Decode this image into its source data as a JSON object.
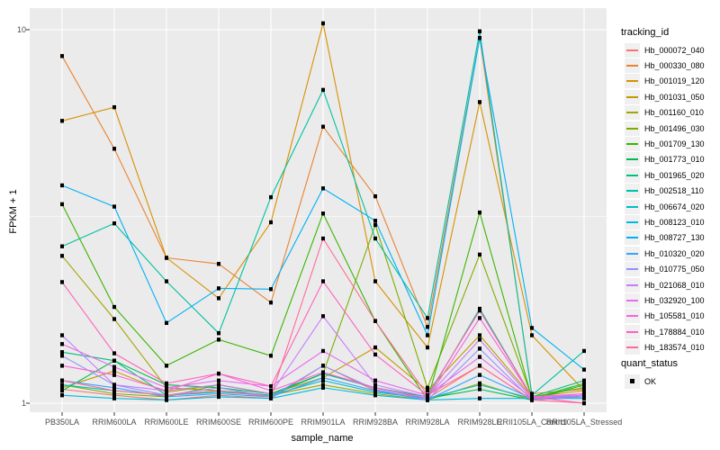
{
  "chart_data": {
    "type": "line",
    "xlabel": "sample_name",
    "ylabel": "FPKM + 1",
    "y_scale": "log10",
    "ylim": [
      1,
      11.5
    ],
    "y_ticks": [
      10,
      1
    ],
    "y_tick_labels": [
      "10",
      "1"
    ],
    "y_minor_gridlines": [
      3.1623
    ],
    "grid": true,
    "legend_position": "right",
    "legend_title": "tracking_id",
    "quant_legend": {
      "title": "quant_status",
      "items": [
        {
          "label": "OK",
          "marker": "black-square"
        }
      ]
    },
    "marker": "black-square",
    "x_categories": [
      "PB350LA",
      "RRIM600LA",
      "RRIM600LE",
      "RRIM600SE",
      "RRIM600PE",
      "RRIM901LA",
      "RRIM928BA",
      "RRIM928LA",
      "RRIM928LE",
      "RRII105LA_Control",
      "RRII105LA_Stressed"
    ],
    "series": [
      {
        "name": "Hb_000072_040",
        "color": "#F8766D",
        "values": [
          1.09,
          1.05,
          1.02,
          1.05,
          1.03,
          1.26,
          1.08,
          1.03,
          1.26,
          1.02,
          1.04
        ]
      },
      {
        "name": "Hb_000330_080",
        "color": "#EA8331",
        "values": [
          8.5,
          4.8,
          2.45,
          2.36,
          1.86,
          5.5,
          3.58,
          1.6,
          9.5,
          1.06,
          1.09
        ]
      },
      {
        "name": "Hb_001019_120",
        "color": "#D89000",
        "values": [
          5.7,
          6.2,
          2.45,
          1.91,
          3.05,
          10.4,
          2.12,
          1.41,
          6.4,
          1.52,
          1.08
        ]
      },
      {
        "name": "Hb_001031_050",
        "color": "#C09B00",
        "values": [
          1.1,
          1.22,
          1.07,
          1.12,
          1.06,
          1.17,
          1.41,
          1.08,
          1.52,
          1.04,
          1.08
        ]
      },
      {
        "name": "Hb_001160_010",
        "color": "#A3A500",
        "values": [
          2.48,
          1.68,
          1.1,
          1.08,
          1.05,
          1.12,
          1.06,
          1.02,
          1.13,
          1.02,
          1.05
        ]
      },
      {
        "name": "Hb_001496_030",
        "color": "#7CAE00",
        "values": [
          1.12,
          1.06,
          1.04,
          1.12,
          1.06,
          1.2,
          3.0,
          1.1,
          2.5,
          1.04,
          1.1
        ]
      },
      {
        "name": "Hb_001709_130",
        "color": "#39B600",
        "values": [
          3.41,
          1.81,
          1.26,
          1.48,
          1.34,
          3.22,
          1.66,
          1.02,
          3.24,
          1.03,
          1.13
        ]
      },
      {
        "name": "Hb_001773_010",
        "color": "#00BB4E",
        "values": [
          1.08,
          1.3,
          1.12,
          1.1,
          1.06,
          1.2,
          1.1,
          1.03,
          1.09,
          1.02,
          1.12
        ]
      },
      {
        "name": "Hb_001965_020",
        "color": "#00BF7D",
        "values": [
          1.37,
          1.3,
          1.05,
          1.08,
          1.05,
          1.2,
          1.1,
          1.04,
          1.79,
          1.04,
          1.15
        ]
      },
      {
        "name": "Hb_002518_110",
        "color": "#00C1A3",
        "values": [
          2.63,
          3.03,
          2.12,
          1.54,
          3.56,
          6.9,
          2.76,
          1.69,
          9.9,
          1.05,
          1.38
        ]
      },
      {
        "name": "Hb_006674_020",
        "color": "#00BFC4",
        "values": [
          1.12,
          1.08,
          1.05,
          1.07,
          1.05,
          1.15,
          1.07,
          1.03,
          1.12,
          1.03,
          1.04
        ]
      },
      {
        "name": "Hb_008123_010",
        "color": "#00BAE0",
        "values": [
          1.05,
          1.03,
          1.02,
          1.04,
          1.03,
          1.1,
          1.05,
          1.02,
          1.03,
          1.03,
          1.03
        ]
      },
      {
        "name": "Hb_008727_130",
        "color": "#00B0F6",
        "values": [
          3.83,
          3.36,
          1.64,
          2.03,
          2.02,
          3.76,
          3.08,
          1.52,
          9.5,
          1.59,
          1.23
        ]
      },
      {
        "name": "Hb_010320_020",
        "color": "#35A2FF",
        "values": [
          1.15,
          1.1,
          1.04,
          1.06,
          1.04,
          1.17,
          1.08,
          1.02,
          1.19,
          1.03,
          1.05
        ]
      },
      {
        "name": "Hb_010775_050",
        "color": "#9590FF",
        "values": [
          1.34,
          1.12,
          1.05,
          1.1,
          1.04,
          1.26,
          1.09,
          1.02,
          1.4,
          1.02,
          1.04
        ]
      },
      {
        "name": "Hb_021068_010",
        "color": "#C77CFF",
        "values": [
          1.52,
          1.12,
          1.08,
          1.12,
          1.06,
          1.71,
          1.12,
          1.04,
          1.48,
          1.03,
          1.06
        ]
      },
      {
        "name": "Hb_032920_100",
        "color": "#E76BF3",
        "values": [
          1.44,
          1.25,
          1.1,
          1.15,
          1.11,
          1.38,
          1.15,
          1.05,
          1.33,
          1.03,
          1.05
        ]
      },
      {
        "name": "Hb_105581_010",
        "color": "#FA62DB",
        "values": [
          1.26,
          1.19,
          1.08,
          1.2,
          1.08,
          1.21,
          1.1,
          1.03,
          1.69,
          1.04,
          1.06
        ]
      },
      {
        "name": "Hb_178884_010",
        "color": "#FF62BC",
        "values": [
          2.11,
          1.36,
          1.13,
          1.2,
          1.11,
          2.12,
          1.35,
          1.05,
          1.77,
          1.04,
          1.0
        ]
      },
      {
        "name": "Hb_183574_010",
        "color": "#FF6A98",
        "values": [
          1.15,
          1.08,
          1.05,
          1.08,
          1.04,
          2.76,
          1.66,
          1.05,
          1.26,
          1.02,
          1.0
        ]
      }
    ],
    "colors": {
      "panel_bg": "#EBEBEB",
      "grid": "#FFFFFF",
      "tick": "#333333",
      "axis_text": "#4D4D4D",
      "marker": "#000000",
      "legend_key_bg": "#F0F0F0"
    }
  }
}
